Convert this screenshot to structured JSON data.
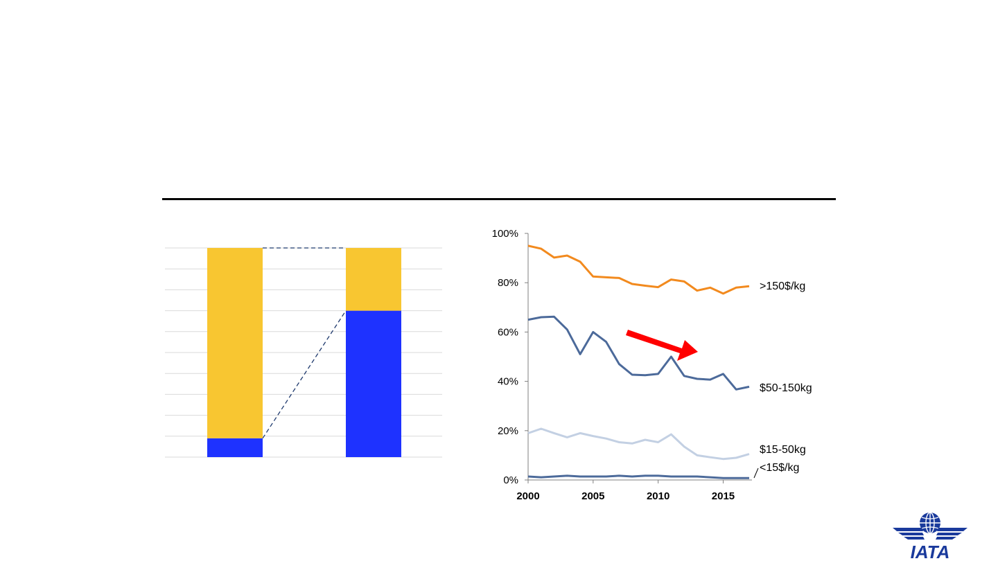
{
  "chart_data": [
    {
      "type": "bar",
      "stacked": true,
      "categories": [
        "",
        ""
      ],
      "series": [
        {
          "values": [
            9,
            70
          ],
          "color": "#1e32ff"
        },
        {
          "values": [
            91,
            30
          ],
          "color": "#f8c631"
        }
      ],
      "ylim": [
        0,
        100
      ],
      "grid": true,
      "connector_lines": "dashed"
    },
    {
      "type": "line",
      "x": [
        2000,
        2001,
        2002,
        2003,
        2004,
        2005,
        2006,
        2007,
        2008,
        2009,
        2010,
        2011,
        2012,
        2013,
        2014,
        2015,
        2016,
        2017
      ],
      "xticks": [
        "2000",
        "2005",
        "2010",
        "2015"
      ],
      "yticks": [
        "0%",
        "20%",
        "40%",
        "60%",
        "80%",
        "100%"
      ],
      "ylim": [
        0,
        100
      ],
      "series": [
        {
          "name": ">150$/kg",
          "color": "#f28a1e",
          "values": [
            95,
            93.8,
            90.2,
            91,
            88.5,
            82.5,
            82.2,
            81.9,
            79.5,
            78.8,
            78.2,
            81.3,
            80.5,
            76.8,
            78,
            75.6,
            78,
            78.6
          ]
        },
        {
          "name": "$50-150kg",
          "color": "#4c6a9a",
          "values": [
            65,
            66,
            66.2,
            61,
            51,
            60,
            56,
            47,
            42.7,
            42.5,
            43,
            50,
            42.2,
            41,
            40.7,
            43,
            36.7,
            37.8
          ]
        },
        {
          "name": "$15-50kg",
          "color": "#c3d0e3",
          "values": [
            19,
            20.8,
            19,
            17.3,
            19,
            17.8,
            16.8,
            15.3,
            14.8,
            16.3,
            15.3,
            18.5,
            13.5,
            10,
            9.2,
            8.5,
            9,
            10.5
          ]
        },
        {
          "name": "<15$/kg",
          "color": "#4c6a9a",
          "values": [
            1.4,
            1.1,
            1.4,
            1.7,
            1.4,
            1.4,
            1.4,
            1.7,
            1.4,
            1.7,
            1.7,
            1.4,
            1.4,
            1.4,
            1.1,
            0.8,
            0.8,
            0.8
          ]
        }
      ],
      "annotation": "red trend arrow pointing down-right"
    }
  ],
  "logo": {
    "text": "IATA",
    "color": "#1a3a9c"
  }
}
